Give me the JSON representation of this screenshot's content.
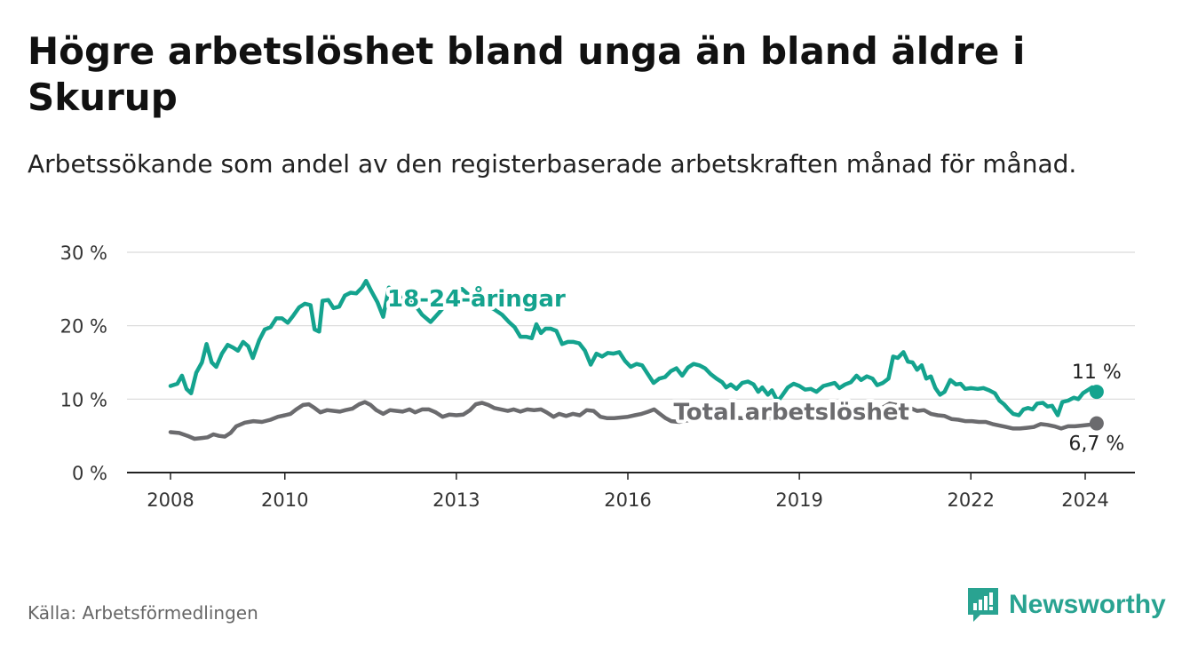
{
  "title": "Högre arbetslöshet bland unga än bland äldre i Skurup",
  "subtitle": "Arbetssökande som andel av den registerbaserade arbetskraften månad för månad.",
  "source": "Källa: Arbetsförmedlingen",
  "brand": {
    "name": "Newsworthy",
    "icon": "newsworthy-logo-icon",
    "color": "#29a391"
  },
  "chart_data": {
    "type": "line",
    "title": "Högre arbetslöshet bland unga än bland äldre i Skurup",
    "xlabel": "",
    "ylabel": "",
    "ylim": [
      0,
      30
    ],
    "xlim": [
      2008.0,
      2024.3
    ],
    "grid": true,
    "y_ticks": [
      0,
      10,
      20,
      30
    ],
    "y_tick_labels": [
      "0 %",
      "10 %",
      "20 %",
      "30 %"
    ],
    "x_ticks": [
      2008,
      2010,
      2013,
      2016,
      2019,
      2022,
      2024
    ],
    "x_tick_labels": [
      "2008",
      "2010",
      "2013",
      "2016",
      "2019",
      "2022",
      "2024"
    ],
    "series": [
      {
        "name": "18-24-åringar",
        "color": "#14a38e",
        "end_label": "11 %",
        "points": [
          [
            2008.0,
            11.8
          ],
          [
            2008.12,
            12.1
          ],
          [
            2008.2,
            13.2
          ],
          [
            2008.28,
            11.4
          ],
          [
            2008.36,
            10.8
          ],
          [
            2008.45,
            13.6
          ],
          [
            2008.55,
            15.0
          ],
          [
            2008.63,
            17.5
          ],
          [
            2008.72,
            15.0
          ],
          [
            2008.8,
            14.4
          ],
          [
            2008.9,
            16.2
          ],
          [
            2009.0,
            17.4
          ],
          [
            2009.1,
            17.0
          ],
          [
            2009.18,
            16.6
          ],
          [
            2009.27,
            17.8
          ],
          [
            2009.36,
            17.2
          ],
          [
            2009.44,
            15.6
          ],
          [
            2009.55,
            18.0
          ],
          [
            2009.65,
            19.5
          ],
          [
            2009.75,
            19.8
          ],
          [
            2009.85,
            21.0
          ],
          [
            2009.95,
            21.0
          ],
          [
            2010.05,
            20.4
          ],
          [
            2010.15,
            21.4
          ],
          [
            2010.25,
            22.5
          ],
          [
            2010.35,
            23.0
          ],
          [
            2010.45,
            22.8
          ],
          [
            2010.52,
            19.5
          ],
          [
            2010.6,
            19.2
          ],
          [
            2010.66,
            23.4
          ],
          [
            2010.76,
            23.5
          ],
          [
            2010.85,
            22.4
          ],
          [
            2010.95,
            22.6
          ],
          [
            2011.05,
            24.1
          ],
          [
            2011.15,
            24.5
          ],
          [
            2011.25,
            24.4
          ],
          [
            2011.35,
            25.2
          ],
          [
            2011.42,
            26.1
          ],
          [
            2011.52,
            24.6
          ],
          [
            2011.62,
            23.2
          ],
          [
            2011.72,
            21.2
          ],
          [
            2011.82,
            25.2
          ],
          [
            2011.92,
            24.6
          ],
          [
            2012.0,
            23.4
          ],
          [
            2012.1,
            24.2
          ],
          [
            2012.18,
            24.0
          ],
          [
            2012.28,
            22.8
          ],
          [
            2012.4,
            21.5
          ],
          [
            2012.55,
            20.5
          ],
          [
            2012.7,
            21.8
          ],
          [
            2012.85,
            23.2
          ],
          [
            2013.0,
            24.5
          ],
          [
            2013.1,
            25.0
          ],
          [
            2013.2,
            24.3
          ],
          [
            2013.35,
            23.5
          ],
          [
            2013.5,
            22.8
          ],
          [
            2013.65,
            22.3
          ],
          [
            2013.8,
            21.5
          ],
          [
            2013.92,
            20.5
          ],
          [
            2014.02,
            19.8
          ],
          [
            2014.12,
            18.5
          ],
          [
            2014.22,
            18.5
          ],
          [
            2014.32,
            18.3
          ],
          [
            2014.4,
            20.2
          ],
          [
            2014.48,
            19.0
          ],
          [
            2014.56,
            19.6
          ],
          [
            2014.65,
            19.6
          ],
          [
            2014.75,
            19.3
          ],
          [
            2014.85,
            17.5
          ],
          [
            2014.95,
            17.8
          ],
          [
            2015.05,
            17.8
          ],
          [
            2015.15,
            17.6
          ],
          [
            2015.25,
            16.6
          ],
          [
            2015.35,
            14.7
          ],
          [
            2015.45,
            16.2
          ],
          [
            2015.55,
            15.8
          ],
          [
            2015.65,
            16.3
          ],
          [
            2015.75,
            16.2
          ],
          [
            2015.85,
            16.4
          ],
          [
            2015.95,
            15.2
          ],
          [
            2016.05,
            14.4
          ],
          [
            2016.15,
            14.8
          ],
          [
            2016.25,
            14.6
          ],
          [
            2016.35,
            13.4
          ],
          [
            2016.45,
            12.2
          ],
          [
            2016.55,
            12.8
          ],
          [
            2016.65,
            13.0
          ],
          [
            2016.75,
            13.8
          ],
          [
            2016.85,
            14.2
          ],
          [
            2016.95,
            13.2
          ],
          [
            2017.05,
            14.3
          ],
          [
            2017.15,
            14.8
          ],
          [
            2017.25,
            14.6
          ],
          [
            2017.35,
            14.2
          ],
          [
            2017.45,
            13.4
          ],
          [
            2017.55,
            12.8
          ],
          [
            2017.65,
            12.3
          ],
          [
            2017.72,
            11.6
          ],
          [
            2017.8,
            12.0
          ],
          [
            2017.9,
            11.4
          ],
          [
            2018.0,
            12.2
          ],
          [
            2018.1,
            12.4
          ],
          [
            2018.2,
            12.0
          ],
          [
            2018.28,
            11.0
          ],
          [
            2018.35,
            11.6
          ],
          [
            2018.45,
            10.6
          ],
          [
            2018.52,
            11.2
          ],
          [
            2018.62,
            9.7
          ],
          [
            2018.7,
            10.5
          ],
          [
            2018.8,
            11.6
          ],
          [
            2018.9,
            12.1
          ],
          [
            2019.0,
            11.8
          ],
          [
            2019.1,
            11.3
          ],
          [
            2019.2,
            11.4
          ],
          [
            2019.3,
            11.0
          ],
          [
            2019.42,
            11.8
          ],
          [
            2019.52,
            12.0
          ],
          [
            2019.62,
            12.2
          ],
          [
            2019.7,
            11.5
          ],
          [
            2019.8,
            12.0
          ],
          [
            2019.9,
            12.3
          ],
          [
            2020.0,
            13.2
          ],
          [
            2020.08,
            12.6
          ],
          [
            2020.18,
            13.1
          ],
          [
            2020.28,
            12.8
          ],
          [
            2020.36,
            11.9
          ],
          [
            2020.46,
            12.2
          ],
          [
            2020.56,
            12.8
          ],
          [
            2020.64,
            15.8
          ],
          [
            2020.72,
            15.6
          ],
          [
            2020.82,
            16.4
          ],
          [
            2020.9,
            15.1
          ],
          [
            2020.98,
            15.0
          ],
          [
            2021.06,
            14.0
          ],
          [
            2021.14,
            14.6
          ],
          [
            2021.22,
            12.8
          ],
          [
            2021.3,
            13.1
          ],
          [
            2021.38,
            11.5
          ],
          [
            2021.46,
            10.6
          ],
          [
            2021.54,
            11.0
          ],
          [
            2021.64,
            12.6
          ],
          [
            2021.74,
            12.0
          ],
          [
            2021.82,
            12.1
          ],
          [
            2021.9,
            11.4
          ],
          [
            2022.0,
            11.5
          ],
          [
            2022.12,
            11.4
          ],
          [
            2022.22,
            11.5
          ],
          [
            2022.32,
            11.2
          ],
          [
            2022.42,
            10.8
          ],
          [
            2022.5,
            9.8
          ],
          [
            2022.58,
            9.3
          ],
          [
            2022.66,
            8.6
          ],
          [
            2022.74,
            8.0
          ],
          [
            2022.84,
            7.8
          ],
          [
            2022.92,
            8.6
          ],
          [
            2023.0,
            8.8
          ],
          [
            2023.08,
            8.6
          ],
          [
            2023.16,
            9.4
          ],
          [
            2023.26,
            9.5
          ],
          [
            2023.34,
            9.0
          ],
          [
            2023.42,
            9.1
          ],
          [
            2023.52,
            7.8
          ],
          [
            2023.6,
            9.6
          ],
          [
            2023.7,
            9.8
          ],
          [
            2023.8,
            10.2
          ],
          [
            2023.88,
            10.0
          ],
          [
            2023.96,
            10.8
          ],
          [
            2024.04,
            11.2
          ],
          [
            2024.12,
            11.6
          ],
          [
            2024.2,
            11.0
          ]
        ]
      },
      {
        "name": "Total arbetslöshet",
        "color": "#6b6b6e",
        "end_label": "6,7 %",
        "points": [
          [
            2008.0,
            5.5
          ],
          [
            2008.15,
            5.4
          ],
          [
            2008.3,
            5.0
          ],
          [
            2008.42,
            4.6
          ],
          [
            2008.55,
            4.7
          ],
          [
            2008.65,
            4.8
          ],
          [
            2008.75,
            5.2
          ],
          [
            2008.85,
            5.0
          ],
          [
            2008.95,
            4.9
          ],
          [
            2009.05,
            5.4
          ],
          [
            2009.15,
            6.3
          ],
          [
            2009.3,
            6.8
          ],
          [
            2009.45,
            7.0
          ],
          [
            2009.6,
            6.9
          ],
          [
            2009.75,
            7.2
          ],
          [
            2009.88,
            7.6
          ],
          [
            2010.0,
            7.8
          ],
          [
            2010.1,
            8.0
          ],
          [
            2010.2,
            8.6
          ],
          [
            2010.32,
            9.2
          ],
          [
            2010.42,
            9.3
          ],
          [
            2010.52,
            8.8
          ],
          [
            2010.62,
            8.2
          ],
          [
            2010.74,
            8.5
          ],
          [
            2010.86,
            8.4
          ],
          [
            2010.96,
            8.3
          ],
          [
            2011.06,
            8.5
          ],
          [
            2011.18,
            8.7
          ],
          [
            2011.3,
            9.3
          ],
          [
            2011.4,
            9.6
          ],
          [
            2011.5,
            9.2
          ],
          [
            2011.6,
            8.5
          ],
          [
            2011.72,
            8.0
          ],
          [
            2011.84,
            8.5
          ],
          [
            2011.96,
            8.4
          ],
          [
            2012.06,
            8.3
          ],
          [
            2012.18,
            8.6
          ],
          [
            2012.28,
            8.2
          ],
          [
            2012.4,
            8.6
          ],
          [
            2012.52,
            8.6
          ],
          [
            2012.64,
            8.2
          ],
          [
            2012.76,
            7.6
          ],
          [
            2012.88,
            7.9
          ],
          [
            2013.0,
            7.8
          ],
          [
            2013.12,
            7.9
          ],
          [
            2013.24,
            8.5
          ],
          [
            2013.34,
            9.3
          ],
          [
            2013.45,
            9.5
          ],
          [
            2013.56,
            9.2
          ],
          [
            2013.66,
            8.8
          ],
          [
            2013.78,
            8.6
          ],
          [
            2013.9,
            8.4
          ],
          [
            2014.0,
            8.6
          ],
          [
            2014.12,
            8.3
          ],
          [
            2014.24,
            8.6
          ],
          [
            2014.36,
            8.5
          ],
          [
            2014.48,
            8.6
          ],
          [
            2014.58,
            8.2
          ],
          [
            2014.7,
            7.6
          ],
          [
            2014.8,
            8.0
          ],
          [
            2014.92,
            7.7
          ],
          [
            2015.04,
            8.0
          ],
          [
            2015.16,
            7.8
          ],
          [
            2015.28,
            8.5
          ],
          [
            2015.4,
            8.4
          ],
          [
            2015.52,
            7.6
          ],
          [
            2015.64,
            7.4
          ],
          [
            2015.76,
            7.4
          ],
          [
            2015.88,
            7.5
          ],
          [
            2016.0,
            7.6
          ],
          [
            2016.12,
            7.8
          ],
          [
            2016.24,
            8.0
          ],
          [
            2016.36,
            8.3
          ],
          [
            2016.46,
            8.6
          ],
          [
            2016.56,
            8.0
          ],
          [
            2016.66,
            7.4
          ],
          [
            2016.76,
            7.0
          ],
          [
            2016.9,
            6.9
          ],
          [
            2017.1,
            7.2
          ],
          [
            2017.4,
            7.8
          ],
          [
            2017.7,
            7.5
          ],
          [
            2018.0,
            7.4
          ],
          [
            2018.3,
            7.6
          ],
          [
            2018.6,
            7.2
          ],
          [
            2018.9,
            7.4
          ],
          [
            2019.2,
            7.6
          ],
          [
            2019.5,
            7.5
          ],
          [
            2019.8,
            7.8
          ],
          [
            2020.1,
            8.0
          ],
          [
            2020.4,
            8.6
          ],
          [
            2020.58,
            9.4
          ],
          [
            2020.7,
            9.2
          ],
          [
            2020.82,
            8.7
          ],
          [
            2020.94,
            8.8
          ],
          [
            2021.06,
            8.4
          ],
          [
            2021.18,
            8.5
          ],
          [
            2021.3,
            8.0
          ],
          [
            2021.42,
            7.8
          ],
          [
            2021.54,
            7.7
          ],
          [
            2021.66,
            7.3
          ],
          [
            2021.78,
            7.2
          ],
          [
            2021.9,
            7.0
          ],
          [
            2022.02,
            7.0
          ],
          [
            2022.14,
            6.9
          ],
          [
            2022.26,
            6.9
          ],
          [
            2022.38,
            6.6
          ],
          [
            2022.5,
            6.4
          ],
          [
            2022.62,
            6.2
          ],
          [
            2022.74,
            6.0
          ],
          [
            2022.86,
            6.0
          ],
          [
            2022.98,
            6.1
          ],
          [
            2023.1,
            6.2
          ],
          [
            2023.22,
            6.6
          ],
          [
            2023.34,
            6.5
          ],
          [
            2023.46,
            6.3
          ],
          [
            2023.58,
            6.0
          ],
          [
            2023.7,
            6.3
          ],
          [
            2023.82,
            6.3
          ],
          [
            2023.94,
            6.4
          ],
          [
            2024.06,
            6.5
          ],
          [
            2024.2,
            6.7
          ]
        ]
      }
    ],
    "annotations": [
      {
        "text": "18-24-åringar",
        "series": "18-24-åringar",
        "x": 2013.35,
        "y": 22.6,
        "anchor": "middle"
      },
      {
        "text": "Total arbetslöshet",
        "series": "Total arbetslöshet",
        "x": 2016.8,
        "y": 7.2,
        "anchor": "start"
      }
    ]
  }
}
